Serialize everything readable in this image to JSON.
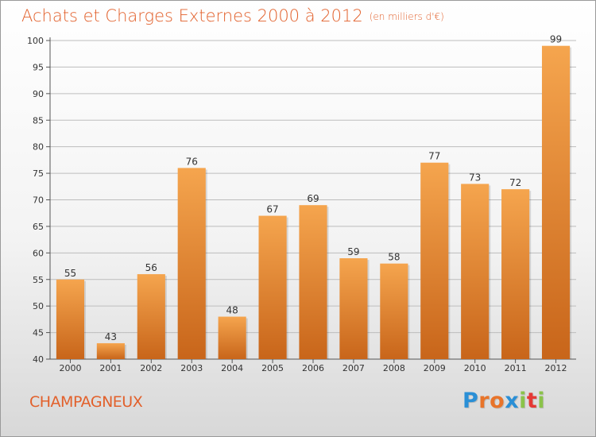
{
  "header": {
    "title": "Achats et Charges Externes 2000 à 2012",
    "unit": "(en milliers d'€)"
  },
  "location": "CHAMPAGNEUX",
  "logo": {
    "letters": [
      "P",
      "r",
      "o",
      "x",
      "i",
      "t",
      "i"
    ],
    "colors": [
      "#2a8fd6",
      "#e8742a",
      "#e8742a",
      "#2a8fd6",
      "#8bc34a",
      "#e53935",
      "#8bc34a"
    ]
  },
  "colors": {
    "title": "#e2602b",
    "bar_top": "#f5a54e",
    "bar_bottom": "#c8651a",
    "grid": "#bdbdbd"
  },
  "chart_data": {
    "type": "bar",
    "title": "Achats et Charges Externes 2000 à 2012",
    "categories": [
      "2000",
      "2001",
      "2002",
      "2003",
      "2004",
      "2005",
      "2006",
      "2007",
      "2008",
      "2009",
      "2010",
      "2011",
      "2012"
    ],
    "values": [
      55,
      43,
      56,
      76,
      48,
      67,
      69,
      59,
      58,
      77,
      73,
      72,
      99
    ],
    "ylim": [
      40,
      100
    ],
    "yticks": [
      40,
      45,
      50,
      55,
      60,
      65,
      70,
      75,
      80,
      85,
      90,
      95,
      100
    ],
    "grid": true,
    "data_labels": true
  }
}
